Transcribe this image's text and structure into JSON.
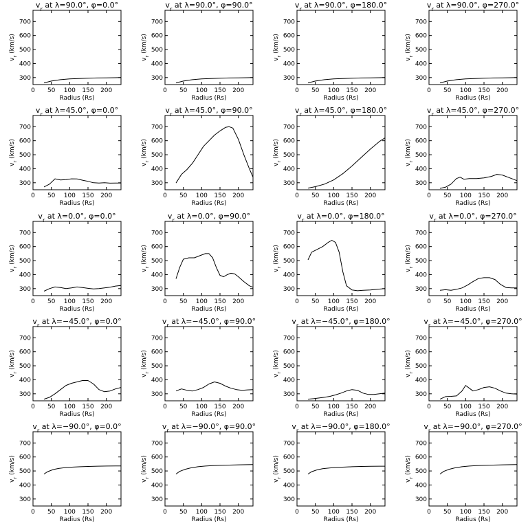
{
  "figure": {
    "axis_labels": {
      "x": "Radius (Rs)",
      "y": "v<sub>r</sub> (km/s)"
    }
  },
  "chart_data": [
    {
      "type": "line",
      "title": "v<sub>r</sub> at λ=90.0°, φ=0.0°",
      "xlabel": "Radius (Rs)",
      "ylabel": "v<sub>r</sub> (km/s)",
      "xlim": [
        0,
        240
      ],
      "ylim": [
        250,
        780
      ],
      "xticks": [
        0,
        50,
        100,
        150,
        200
      ],
      "yticks": [
        300,
        400,
        500,
        600,
        700
      ],
      "x": [
        30,
        50,
        75,
        100,
        125,
        150,
        175,
        200,
        225,
        240
      ],
      "y": [
        262,
        275,
        285,
        290,
        293,
        295,
        297,
        298,
        299,
        300
      ]
    },
    {
      "type": "line",
      "title": "v<sub>r</sub> at λ=90.0°, φ=90.0°",
      "xlabel": "Radius (Rs)",
      "ylabel": "v<sub>r</sub> (km/s)",
      "xlim": [
        0,
        240
      ],
      "ylim": [
        250,
        780
      ],
      "xticks": [
        0,
        50,
        100,
        150,
        200
      ],
      "yticks": [
        300,
        400,
        500,
        600,
        700
      ],
      "x": [
        30,
        50,
        75,
        100,
        125,
        150,
        175,
        200,
        225,
        240
      ],
      "y": [
        262,
        275,
        285,
        290,
        293,
        295,
        297,
        298,
        299,
        300
      ]
    },
    {
      "type": "line",
      "title": "v<sub>r</sub> at λ=90.0°, φ=180.0°",
      "xlabel": "Radius (Rs)",
      "ylabel": "v<sub>r</sub> (km/s)",
      "xlim": [
        0,
        240
      ],
      "ylim": [
        250,
        780
      ],
      "xticks": [
        0,
        50,
        100,
        150,
        200
      ],
      "yticks": [
        300,
        400,
        500,
        600,
        700
      ],
      "x": [
        30,
        50,
        75,
        100,
        125,
        150,
        175,
        200,
        225,
        240
      ],
      "y": [
        262,
        275,
        285,
        290,
        293,
        295,
        297,
        298,
        299,
        300
      ]
    },
    {
      "type": "line",
      "title": "v<sub>r</sub> at λ=90.0°, φ=270.0°",
      "xlabel": "Radius (Rs)",
      "ylabel": "v<sub>r</sub> (km/s)",
      "xlim": [
        0,
        240
      ],
      "ylim": [
        250,
        780
      ],
      "xticks": [
        0,
        50,
        100,
        150,
        200
      ],
      "yticks": [
        300,
        400,
        500,
        600,
        700
      ],
      "x": [
        30,
        50,
        75,
        100,
        125,
        150,
        175,
        200,
        225,
        240
      ],
      "y": [
        262,
        275,
        285,
        290,
        293,
        295,
        297,
        298,
        299,
        300
      ]
    },
    {
      "type": "line",
      "title": "v<sub>r</sub> at λ=45.0°, φ=0.0°",
      "xlabel": "Radius (Rs)",
      "ylabel": "v<sub>r</sub> (km/s)",
      "xlim": [
        0,
        240
      ],
      "ylim": [
        250,
        780
      ],
      "xticks": [
        0,
        50,
        100,
        150,
        200
      ],
      "yticks": [
        300,
        400,
        500,
        600,
        700
      ],
      "x": [
        30,
        45,
        60,
        75,
        90,
        105,
        120,
        135,
        150,
        165,
        180,
        195,
        210,
        225,
        240
      ],
      "y": [
        270,
        290,
        328,
        320,
        322,
        328,
        327,
        318,
        310,
        300,
        298,
        300,
        297,
        298,
        298
      ]
    },
    {
      "type": "line",
      "title": "v<sub>r</sub> at λ=45.0°, φ=90.0°",
      "xlabel": "Radius (Rs)",
      "ylabel": "v<sub>r</sub> (km/s)",
      "xlim": [
        0,
        240
      ],
      "ylim": [
        250,
        780
      ],
      "xticks": [
        0,
        50,
        100,
        150,
        200
      ],
      "yticks": [
        300,
        400,
        500,
        600,
        700
      ],
      "x": [
        30,
        45,
        60,
        75,
        90,
        105,
        120,
        135,
        150,
        165,
        175,
        185,
        200,
        215,
        230,
        240
      ],
      "y": [
        298,
        360,
        395,
        440,
        500,
        560,
        600,
        640,
        670,
        695,
        700,
        690,
        610,
        500,
        400,
        340
      ]
    },
    {
      "type": "line",
      "title": "v<sub>r</sub> at λ=45.0°, φ=180.0°",
      "xlabel": "Radius (Rs)",
      "ylabel": "v<sub>r</sub> (km/s)",
      "xlim": [
        0,
        240
      ],
      "ylim": [
        250,
        780
      ],
      "xticks": [
        0,
        50,
        100,
        150,
        200
      ],
      "yticks": [
        300,
        400,
        500,
        600,
        700
      ],
      "x": [
        30,
        50,
        75,
        100,
        125,
        150,
        175,
        200,
        225,
        240
      ],
      "y": [
        262,
        272,
        290,
        320,
        365,
        420,
        480,
        540,
        595,
        620
      ]
    },
    {
      "type": "line",
      "title": "v<sub>r</sub> at λ=45.0°, φ=270.0°",
      "xlabel": "Radius (Rs)",
      "ylabel": "v<sub>r</sub> (km/s)",
      "xlim": [
        0,
        240
      ],
      "ylim": [
        250,
        780
      ],
      "xticks": [
        0,
        50,
        100,
        150,
        200
      ],
      "yticks": [
        300,
        400,
        500,
        600,
        700
      ],
      "x": [
        30,
        45,
        60,
        75,
        85,
        95,
        110,
        130,
        150,
        170,
        185,
        200,
        215,
        230,
        240
      ],
      "y": [
        260,
        268,
        290,
        330,
        340,
        325,
        330,
        330,
        335,
        345,
        360,
        355,
        340,
        325,
        315
      ]
    },
    {
      "type": "line",
      "title": "v<sub>r</sub> at λ=0.0°, φ=0.0°",
      "xlabel": "Radius (Rs)",
      "ylabel": "v<sub>r</sub> (km/s)",
      "xlim": [
        0,
        240
      ],
      "ylim": [
        250,
        780
      ],
      "xticks": [
        0,
        50,
        100,
        150,
        200
      ],
      "yticks": [
        300,
        400,
        500,
        600,
        700
      ],
      "x": [
        30,
        45,
        60,
        75,
        90,
        105,
        120,
        135,
        150,
        165,
        180,
        195,
        210,
        225,
        240
      ],
      "y": [
        282,
        300,
        312,
        308,
        300,
        305,
        312,
        308,
        302,
        298,
        300,
        305,
        310,
        318,
        322
      ]
    },
    {
      "type": "line",
      "title": "v<sub>r</sub> at λ=0.0°, φ=90.0°",
      "xlabel": "Radius (Rs)",
      "ylabel": "v<sub>r</sub> (km/s)",
      "xlim": [
        0,
        240
      ],
      "ylim": [
        250,
        780
      ],
      "xticks": [
        0,
        50,
        100,
        150,
        200
      ],
      "yticks": [
        300,
        400,
        500,
        600,
        700
      ],
      "x": [
        30,
        40,
        50,
        65,
        80,
        95,
        110,
        120,
        130,
        140,
        150,
        160,
        170,
        180,
        190,
        200,
        215,
        230,
        240
      ],
      "y": [
        370,
        450,
        510,
        520,
        520,
        535,
        550,
        550,
        520,
        450,
        395,
        385,
        400,
        410,
        405,
        385,
        350,
        320,
        310
      ]
    },
    {
      "type": "line",
      "title": "v<sub>r</sub> at λ=0.0°, φ=180.0°",
      "xlabel": "Radius (Rs)",
      "ylabel": "v<sub>r</sub> (km/s)",
      "xlim": [
        0,
        240
      ],
      "ylim": [
        250,
        780
      ],
      "xticks": [
        0,
        50,
        100,
        150,
        200
      ],
      "yticks": [
        300,
        400,
        500,
        600,
        700
      ],
      "x": [
        30,
        40,
        55,
        70,
        85,
        95,
        105,
        115,
        125,
        135,
        150,
        165,
        180,
        200,
        220,
        240
      ],
      "y": [
        505,
        560,
        580,
        600,
        630,
        645,
        630,
        560,
        420,
        320,
        290,
        285,
        288,
        290,
        295,
        300
      ]
    },
    {
      "type": "line",
      "title": "v<sub>r</sub> at λ=0.0°, φ=270.0°",
      "xlabel": "Radius (Rs)",
      "ylabel": "v<sub>r</sub> (km/s)",
      "xlim": [
        0,
        240
      ],
      "ylim": [
        250,
        780
      ],
      "xticks": [
        0,
        50,
        100,
        150,
        200
      ],
      "yticks": [
        300,
        400,
        500,
        600,
        700
      ],
      "x": [
        30,
        45,
        60,
        75,
        90,
        105,
        120,
        135,
        150,
        165,
        180,
        195,
        210,
        225,
        240
      ],
      "y": [
        288,
        292,
        288,
        295,
        305,
        325,
        350,
        372,
        378,
        378,
        365,
        330,
        308,
        305,
        305
      ]
    },
    {
      "type": "line",
      "title": "v<sub>r</sub> at λ=−45.0°, φ=0.0°",
      "xlabel": "Radius (Rs)",
      "ylabel": "v<sub>r</sub> (km/s)",
      "xlim": [
        0,
        240
      ],
      "ylim": [
        250,
        780
      ],
      "xticks": [
        0,
        50,
        100,
        150,
        200
      ],
      "yticks": [
        300,
        400,
        500,
        600,
        700
      ],
      "x": [
        30,
        45,
        60,
        75,
        90,
        105,
        120,
        135,
        150,
        165,
        180,
        195,
        210,
        225,
        240
      ],
      "y": [
        262,
        275,
        300,
        330,
        360,
        375,
        385,
        395,
        395,
        370,
        330,
        315,
        320,
        335,
        345
      ]
    },
    {
      "type": "line",
      "title": "v<sub>r</sub> at λ=−45.0°, φ=90.0°",
      "xlabel": "Radius (Rs)",
      "ylabel": "v<sub>r</sub> (km/s)",
      "xlim": [
        0,
        240
      ],
      "ylim": [
        250,
        780
      ],
      "xticks": [
        0,
        50,
        100,
        150,
        200
      ],
      "yticks": [
        300,
        400,
        500,
        600,
        700
      ],
      "x": [
        30,
        45,
        60,
        75,
        90,
        105,
        120,
        135,
        150,
        165,
        180,
        195,
        210,
        225,
        240
      ],
      "y": [
        320,
        335,
        325,
        320,
        330,
        345,
        370,
        385,
        375,
        355,
        340,
        330,
        325,
        328,
        330
      ]
    },
    {
      "type": "line",
      "title": "v<sub>r</sub> at λ=−45.0°, φ=180.0°",
      "xlabel": "Radius (Rs)",
      "ylabel": "v<sub>r</sub> (km/s)",
      "xlim": [
        0,
        240
      ],
      "ylim": [
        250,
        780
      ],
      "xticks": [
        0,
        50,
        100,
        150,
        200
      ],
      "yticks": [
        300,
        400,
        500,
        600,
        700
      ],
      "x": [
        30,
        45,
        60,
        75,
        90,
        105,
        120,
        135,
        150,
        165,
        180,
        195,
        210,
        225,
        240
      ],
      "y": [
        262,
        265,
        270,
        275,
        282,
        292,
        305,
        320,
        330,
        325,
        305,
        295,
        295,
        300,
        305
      ]
    },
    {
      "type": "line",
      "title": "v<sub>r</sub> at λ=−45.0°, φ=270.0°",
      "xlabel": "Radius (Rs)",
      "ylabel": "v<sub>r</sub> (km/s)",
      "xlim": [
        0,
        240
      ],
      "ylim": [
        250,
        780
      ],
      "xticks": [
        0,
        50,
        100,
        150,
        200
      ],
      "yticks": [
        300,
        400,
        500,
        600,
        700
      ],
      "x": [
        30,
        45,
        60,
        75,
        90,
        100,
        110,
        120,
        135,
        150,
        165,
        180,
        195,
        210,
        225,
        240
      ],
      "y": [
        262,
        280,
        282,
        285,
        320,
        360,
        340,
        320,
        330,
        345,
        350,
        340,
        320,
        305,
        300,
        298
      ]
    },
    {
      "type": "line",
      "title": "v<sub>r</sub> at λ=−90.0°, φ=0.0°",
      "xlabel": "Radius (Rs)",
      "ylabel": "v<sub>r</sub> (km/s)",
      "xlim": [
        0,
        240
      ],
      "ylim": [
        250,
        780
      ],
      "xticks": [
        0,
        50,
        100,
        150,
        200
      ],
      "yticks": [
        300,
        400,
        500,
        600,
        700
      ],
      "x": [
        30,
        40,
        55,
        70,
        90,
        110,
        130,
        150,
        175,
        200,
        225,
        240
      ],
      "y": [
        478,
        495,
        510,
        518,
        525,
        528,
        530,
        532,
        534,
        535,
        536,
        536
      ]
    },
    {
      "type": "line",
      "title": "v<sub>r</sub> at λ=−90.0°, φ=90.0°",
      "xlabel": "Radius (Rs)",
      "ylabel": "v<sub>r</sub> (km/s)",
      "xlim": [
        0,
        240
      ],
      "ylim": [
        250,
        780
      ],
      "xticks": [
        0,
        50,
        100,
        150,
        200
      ],
      "yticks": [
        300,
        400,
        500,
        600,
        700
      ],
      "x": [
        30,
        40,
        55,
        70,
        90,
        110,
        130,
        150,
        175,
        200,
        225,
        240
      ],
      "y": [
        478,
        497,
        512,
        522,
        530,
        535,
        538,
        540,
        542,
        544,
        545,
        546
      ]
    },
    {
      "type": "line",
      "title": "v<sub>r</sub> at λ=−90.0°, φ=180.0°",
      "xlabel": "Radius (Rs)",
      "ylabel": "v<sub>r</sub> (km/s)",
      "xlim": [
        0,
        240
      ],
      "ylim": [
        250,
        780
      ],
      "xticks": [
        0,
        50,
        100,
        150,
        200
      ],
      "yticks": [
        300,
        400,
        500,
        600,
        700
      ],
      "x": [
        30,
        40,
        55,
        70,
        90,
        110,
        130,
        150,
        175,
        200,
        225,
        240
      ],
      "y": [
        478,
        495,
        508,
        516,
        522,
        526,
        528,
        530,
        532,
        533,
        534,
        534
      ]
    },
    {
      "type": "line",
      "title": "v<sub>r</sub> at λ=−90.0°, φ=270.0°",
      "xlabel": "Radius (Rs)",
      "ylabel": "v<sub>r</sub> (km/s)",
      "xlim": [
        0,
        240
      ],
      "ylim": [
        250,
        780
      ],
      "xticks": [
        0,
        50,
        100,
        150,
        200
      ],
      "yticks": [
        300,
        400,
        500,
        600,
        700
      ],
      "x": [
        30,
        40,
        55,
        70,
        90,
        110,
        130,
        150,
        175,
        200,
        225,
        240
      ],
      "y": [
        478,
        497,
        512,
        522,
        530,
        535,
        538,
        540,
        542,
        544,
        545,
        546
      ]
    }
  ]
}
